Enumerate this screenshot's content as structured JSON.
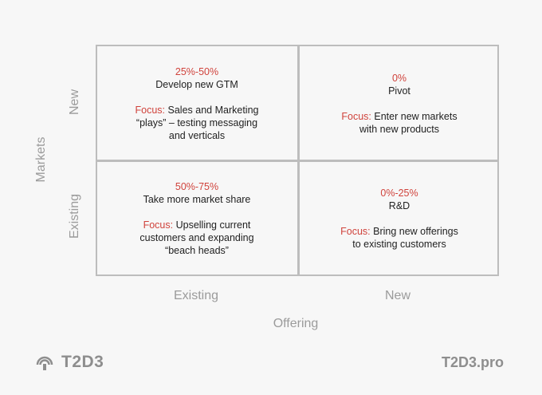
{
  "axes": {
    "y_title": "Markets",
    "y_top": "New",
    "y_bottom": "Existing",
    "x_left": "Existing",
    "x_right": "New",
    "x_title": "Offering"
  },
  "quadrants": {
    "top_left": {
      "percent": "25%-50%",
      "name": "Develop new GTM",
      "focus_label": "Focus:",
      "focus_line1": "Sales and Marketing",
      "focus_line2": "“plays” – testing messaging",
      "focus_line3": "and verticals"
    },
    "top_right": {
      "percent": "0%",
      "name": "Pivot",
      "focus_label": "Focus:",
      "focus_line1": "Enter new markets",
      "focus_line2": "with new products"
    },
    "bottom_left": {
      "percent": "50%-75%",
      "name": "Take more market share",
      "focus_label": "Focus:",
      "focus_line1": "Upselling current",
      "focus_line2": "customers and expanding",
      "focus_line3": "“beach heads”"
    },
    "bottom_right": {
      "percent": "0%-25%",
      "name": "R&D",
      "focus_label": "Focus:",
      "focus_line1": "Bring new offerings",
      "focus_line2": "to existing customers"
    }
  },
  "footer": {
    "brand": "T2D3",
    "site": "T2D3.pro"
  },
  "colors": {
    "accent": "#d0433c",
    "grid": "#bdbdbd",
    "axis_text": "#9b9b9b",
    "background": "#f7f7f7"
  }
}
